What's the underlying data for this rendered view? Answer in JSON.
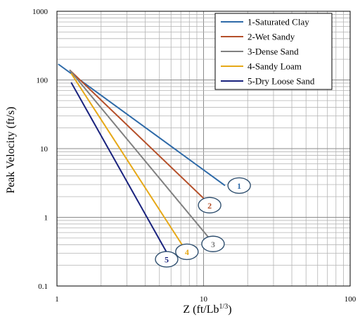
{
  "chart_data": {
    "type": "line",
    "x_scale": "log",
    "y_scale": "log",
    "xlim": [
      1,
      100
    ],
    "ylim": [
      0.1,
      1000
    ],
    "grid": true,
    "legend_position": "top-right",
    "xlabel": "Z (ft/Lb",
    "xlabel_superscript": "1/3",
    "xlabel_suffix": ")",
    "ylabel": "Peak Velocity (ft/s)",
    "x_ticks": [
      "1",
      "10",
      "100"
    ],
    "y_ticks": [
      "0.1",
      "1",
      "10",
      "100",
      "1000"
    ],
    "series": [
      {
        "name": "1-Saturated Clay",
        "color": "#2e6aa8",
        "x": [
          1.02,
          14.0
        ],
        "y": [
          170,
          2.9
        ],
        "marker": "1",
        "marker_at": [
          17.5,
          2.9
        ]
      },
      {
        "name": "2-Wet Sandy",
        "color": "#b5502a",
        "x": [
          1.22,
          10.7
        ],
        "y": [
          140,
          1.65
        ],
        "marker": "2",
        "marker_at": [
          11.0,
          1.5
        ]
      },
      {
        "name": "3-Dense Sand",
        "color": "#808080",
        "x": [
          1.22,
          10.9
        ],
        "y": [
          140,
          0.5
        ],
        "marker": "3",
        "marker_at": [
          11.6,
          0.41
        ]
      },
      {
        "name": "4-Sandy Loam",
        "color": "#e6a817",
        "x": [
          1.25,
          7.3
        ],
        "y": [
          125,
          0.37
        ],
        "marker": "4",
        "marker_at": [
          7.7,
          0.315
        ]
      },
      {
        "name": "5-Dry Loose Sand",
        "color": "#1a237e",
        "x": [
          1.25,
          5.6
        ],
        "y": [
          92,
          0.31
        ],
        "marker": "5",
        "marker_at": [
          5.6,
          0.245
        ]
      }
    ]
  }
}
